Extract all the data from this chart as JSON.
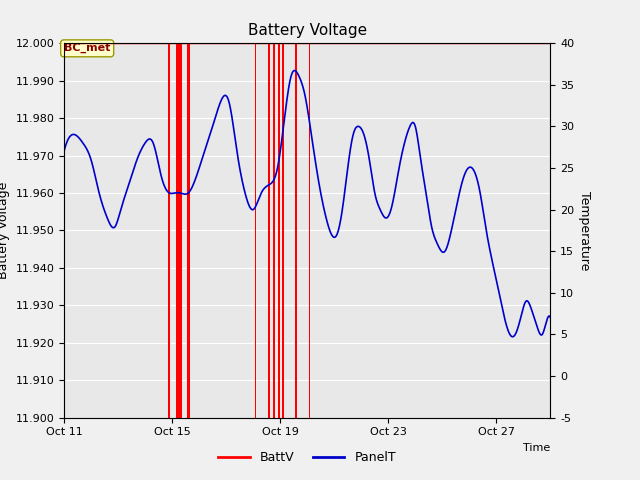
{
  "title": "Battery Voltage",
  "xlabel": "Time",
  "ylabel_left": "Battery Voltage",
  "ylabel_right": "Temperature",
  "ylim_left": [
    11.9,
    12.0
  ],
  "ylim_right": [
    -5,
    40
  ],
  "yticks_left": [
    11.9,
    11.91,
    11.92,
    11.93,
    11.94,
    11.95,
    11.96,
    11.97,
    11.98,
    11.99,
    12.0
  ],
  "yticks_right": [
    -5,
    0,
    5,
    10,
    15,
    20,
    25,
    30,
    35,
    40
  ],
  "xtick_labels": [
    "Oct 11",
    "Oct 15",
    "Oct 19",
    "Oct 23",
    "Oct 27"
  ],
  "xtick_positions": [
    0,
    4,
    8,
    12,
    16
  ],
  "fig_bg_color": "#f0f0f0",
  "plot_bg_color": "#e8e8e8",
  "grid_color": "#ffffff",
  "red_line_color": "#ff0000",
  "blue_line_color": "#0000cc",
  "annotation_text": "BC_met",
  "legend_labels": [
    "BattV",
    "PanelT"
  ],
  "legend_colors": [
    "#ff0000",
    "#0000cc"
  ],
  "xlim": [
    0,
    18
  ],
  "vline_pairs": [
    [
      3.85,
      3.92
    ],
    [
      4.15,
      4.35
    ],
    [
      4.55,
      4.65
    ],
    [
      7.05,
      7.12
    ],
    [
      7.55,
      7.62
    ],
    [
      7.75,
      7.82
    ],
    [
      7.92,
      7.98
    ],
    [
      8.08,
      8.15
    ],
    [
      8.55,
      8.62
    ],
    [
      9.05,
      9.12
    ]
  ],
  "panel_t_data": [
    [
      0.0,
      27
    ],
    [
      0.3,
      29
    ],
    [
      0.7,
      28
    ],
    [
      1.0,
      26
    ],
    [
      1.3,
      22
    ],
    [
      1.6,
      19
    ],
    [
      1.9,
      18
    ],
    [
      2.1,
      20
    ],
    [
      2.4,
      23
    ],
    [
      2.7,
      26
    ],
    [
      3.0,
      28
    ],
    [
      3.3,
      28
    ],
    [
      3.6,
      24
    ],
    [
      3.9,
      22
    ],
    [
      4.1,
      22
    ],
    [
      4.3,
      22
    ],
    [
      4.6,
      22
    ],
    [
      4.9,
      24
    ],
    [
      5.2,
      27
    ],
    [
      5.5,
      30
    ],
    [
      5.8,
      33
    ],
    [
      6.1,
      33
    ],
    [
      6.4,
      27
    ],
    [
      6.7,
      22
    ],
    [
      7.0,
      20
    ],
    [
      7.3,
      22
    ],
    [
      7.6,
      23
    ],
    [
      7.9,
      25
    ],
    [
      8.2,
      32
    ],
    [
      8.4,
      36
    ],
    [
      8.7,
      36
    ],
    [
      8.9,
      34
    ],
    [
      9.2,
      28
    ],
    [
      9.5,
      22
    ],
    [
      9.7,
      19
    ],
    [
      9.9,
      17
    ],
    [
      10.1,
      17
    ],
    [
      10.3,
      20
    ],
    [
      10.5,
      25
    ],
    [
      10.7,
      29
    ],
    [
      10.9,
      30
    ],
    [
      11.1,
      29
    ],
    [
      11.3,
      26
    ],
    [
      11.5,
      22
    ],
    [
      11.7,
      20
    ],
    [
      11.9,
      19
    ],
    [
      12.1,
      20
    ],
    [
      12.4,
      25
    ],
    [
      12.6,
      28
    ],
    [
      12.8,
      30
    ],
    [
      13.0,
      30
    ],
    [
      13.2,
      26
    ],
    [
      13.4,
      22
    ],
    [
      13.6,
      18
    ],
    [
      13.8,
      16
    ],
    [
      14.1,
      15
    ],
    [
      14.3,
      17
    ],
    [
      14.5,
      20
    ],
    [
      14.8,
      24
    ],
    [
      15.1,
      25
    ],
    [
      15.4,
      22
    ],
    [
      15.6,
      18
    ],
    [
      15.9,
      13
    ],
    [
      16.1,
      10
    ],
    [
      16.3,
      7
    ],
    [
      16.5,
      5
    ],
    [
      16.7,
      5
    ],
    [
      16.9,
      7
    ],
    [
      17.1,
      9
    ],
    [
      17.3,
      8
    ],
    [
      17.5,
      6
    ],
    [
      17.7,
      5
    ],
    [
      17.9,
      7
    ],
    [
      18.0,
      7
    ]
  ]
}
